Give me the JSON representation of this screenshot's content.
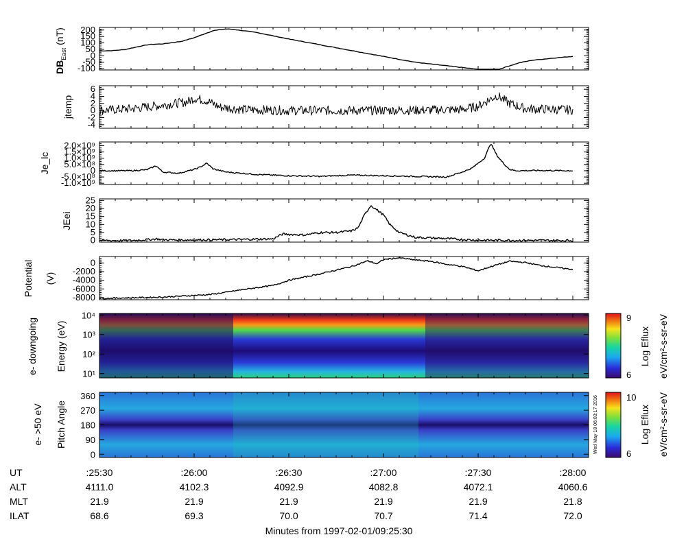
{
  "chart_data": [
    {
      "type": "line",
      "ylabel": "DB",
      "ylabel_sub": "East",
      "ylabel_unit": " (nT)",
      "yticks": [
        200,
        150,
        100,
        50,
        0,
        -50,
        -100
      ],
      "ytick_labels": [
        "200",
        "150",
        "100",
        "50",
        "0",
        "-50",
        "-100"
      ],
      "ylim": [
        -110,
        220
      ],
      "series": [
        {
          "x": [
            0,
            4,
            8,
            13,
            16,
            20,
            26,
            30,
            36,
            40,
            42,
            50,
            60,
            80,
            100,
            120,
            126,
            129,
            133,
            137,
            145,
            150
          ],
          "y": [
            38,
            40,
            48,
            75,
            88,
            92,
            112,
            140,
            195,
            208,
            206,
            180,
            130,
            40,
            -50,
            -105,
            -110,
            -85,
            -55,
            -35,
            -15,
            -5
          ]
        }
      ]
    },
    {
      "type": "line",
      "ylabel": "jtemp",
      "yticks": [
        6,
        4,
        2,
        0,
        -2,
        -4
      ],
      "ytick_labels": [
        "6",
        "4",
        "2",
        "0",
        "-2",
        "-4"
      ],
      "ylim": [
        -5,
        7
      ],
      "series": [
        {
          "x": [
            0,
            10,
            20,
            28,
            30,
            34,
            38,
            45,
            60,
            80,
            100,
            115,
            120,
            123,
            126,
            130,
            135,
            150
          ],
          "y": [
            0,
            0.5,
            1.5,
            2.5,
            3.5,
            2.8,
            1.0,
            0.3,
            0,
            0,
            0.1,
            0.3,
            1.2,
            2.8,
            4.2,
            2.0,
            0.5,
            0.2
          ]
        }
      ]
    },
    {
      "type": "line",
      "ylabel": "Je_lc",
      "yticks": [
        2000000000,
        1500000000,
        1000000000,
        500000000,
        0,
        -500000000,
        -1000000000
      ],
      "ytick_labels": [
        "2.0×10⁹",
        "1.5×10⁹",
        "1.0×10⁹",
        "5.0×10⁸",
        "0",
        "-5.0×10⁸",
        "-1.0×10⁹"
      ],
      "ylim": [
        -1100000000,
        2300000000
      ],
      "series": [
        {
          "x": [
            0,
            10,
            15,
            18,
            20,
            25,
            30,
            32,
            34,
            36,
            40,
            50,
            60,
            70,
            80,
            90,
            100,
            110,
            115,
            118,
            120,
            122,
            124,
            126,
            128,
            130,
            132,
            140,
            150
          ],
          "y": [
            0,
            0,
            80000000,
            400000000,
            -100000000,
            -200000000,
            100000000,
            300000000,
            600000000,
            150000000,
            -100000000,
            -300000000,
            -400000000,
            -450000000,
            -350000000,
            -400000000,
            -450000000,
            -500000000,
            -100000000,
            200000000,
            600000000,
            1000000000,
            2200000000,
            1200000000,
            600000000,
            100000000,
            0,
            20000000,
            0
          ]
        }
      ]
    },
    {
      "type": "line",
      "ylabel": "JEei",
      "yticks": [
        25,
        20,
        15,
        10,
        5,
        0
      ],
      "ytick_labels": [
        "25",
        "20",
        "15",
        "10",
        "5",
        "0"
      ],
      "ylim": [
        -1,
        26
      ],
      "series": [
        {
          "x": [
            0,
            10,
            15,
            18,
            20,
            25,
            40,
            55,
            58,
            65,
            70,
            75,
            80,
            82,
            84,
            86,
            88,
            90,
            92,
            95,
            100,
            110,
            115,
            120,
            150
          ],
          "y": [
            0,
            0,
            0.5,
            1,
            0.5,
            0.3,
            0.5,
            1,
            4,
            3.5,
            5,
            5,
            6,
            8,
            16,
            22,
            19,
            16,
            10,
            5,
            2,
            1.2,
            0.6,
            0.2,
            0
          ]
        }
      ]
    },
    {
      "type": "line",
      "ylabel": "Potential",
      "ylabel2": "(V)",
      "yticks": [
        0,
        -2000,
        -4000,
        -6000,
        -8000
      ],
      "ytick_labels": [
        "0",
        "-2000",
        "-4000",
        "-6000",
        "-8000"
      ],
      "ylim": [
        -8500,
        1500
      ],
      "series": [
        {
          "x": [
            0,
            20,
            35,
            40,
            45,
            55,
            60,
            70,
            80,
            85,
            88,
            90,
            95,
            100,
            105,
            110,
            115,
            120,
            125,
            130,
            135,
            140,
            150
          ],
          "y": [
            -8200,
            -7900,
            -7300,
            -6800,
            -6200,
            -5200,
            -4000,
            -2500,
            -800,
            500,
            -200,
            800,
            1200,
            700,
            400,
            -300,
            -800,
            -1800,
            -600,
            400,
            100,
            -600,
            -1500
          ]
        }
      ]
    },
    {
      "type": "heatmap",
      "ylabel": "Energy (eV)",
      "ylabel2": "e- downgoing",
      "ytick_labels": [
        "10¹",
        "10²",
        "10³",
        "10⁴"
      ],
      "yscale": "log",
      "ylim": [
        6,
        12000
      ],
      "colorbar": {
        "label": "Log Eflux",
        "unit": "eV/cm²-s-sr-eV",
        "min_label": "6",
        "max_label": "9",
        "range": [
          6,
          9
        ]
      }
    },
    {
      "type": "heatmap",
      "ylabel": "Pitch Angle",
      "ylabel2": "e- >50 eV",
      "ytick_labels": [
        "360",
        "270",
        "180",
        "90",
        "0"
      ],
      "yticks": [
        360,
        270,
        180,
        90,
        0
      ],
      "ylim": [
        -20,
        380
      ],
      "colorbar": {
        "label": "Log Eflux",
        "unit": "eV/cm²-s-sr-eV",
        "min_label": "6",
        "max_label": "10",
        "range": [
          6,
          10
        ]
      }
    }
  ],
  "time_axis": {
    "xlim": [
      0,
      155
    ],
    "ticks": [
      0,
      30,
      60,
      90,
      120,
      150
    ],
    "ut_labels": [
      ":25:30",
      ":26:00",
      ":26:30",
      ":27:00",
      ":27:30",
      ":28:00"
    ]
  },
  "orbit_table": {
    "rows": [
      {
        "name": "UT",
        "values": [
          ":25:30",
          ":26:00",
          ":26:30",
          ":27:00",
          ":27:30",
          ":28:00"
        ]
      },
      {
        "name": "ALT",
        "values": [
          "4111.0",
          "4102.3",
          "4092.9",
          "4082.8",
          "4072.1",
          "4060.6"
        ]
      },
      {
        "name": "MLT",
        "values": [
          "21.9",
          "21.9",
          "21.9",
          "21.9",
          "21.9",
          "21.8"
        ]
      },
      {
        "name": "ILAT",
        "values": [
          "68.6",
          "69.3",
          "70.0",
          "70.7",
          "71.4",
          "72.0"
        ]
      }
    ]
  },
  "xlabel": "Minutes from 1997-02-01/09:25:30",
  "timestamp": "Wed May 18 06:03:17 2016",
  "colors": {
    "spectrogram_bg": "#1a0a4a"
  }
}
